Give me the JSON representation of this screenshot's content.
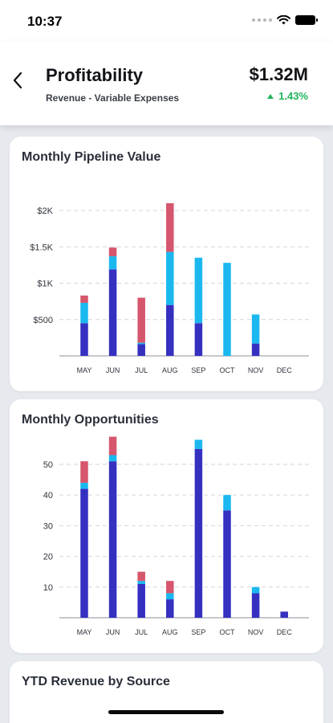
{
  "status_bar": {
    "time": "10:37"
  },
  "header": {
    "title": "Profitability",
    "subtitle": "Revenue - Variable Expenses",
    "value": "$1.32M",
    "change": "1.43%"
  },
  "colors": {
    "dark": "#3530c0",
    "light": "#1ab8ef",
    "red": "#d6566d",
    "positive": "#22b45c"
  },
  "chart_data": [
    {
      "type": "bar",
      "stacked": true,
      "title": "Monthly Pipeline Value",
      "categories": [
        "MAY",
        "JUN",
        "JUL",
        "AUG",
        "SEP",
        "OCT",
        "NOV",
        "DEC"
      ],
      "ylim": [
        0,
        2500
      ],
      "yticks": [
        {
          "value": 500,
          "label": "$500"
        },
        {
          "value": 1000,
          "label": "$1K"
        },
        {
          "value": 1500,
          "label": "$1.5K"
        },
        {
          "value": 2000,
          "label": "$2K"
        }
      ],
      "grid": true,
      "series": [
        {
          "color": "#3530c0",
          "values": [
            450,
            1190,
            160,
            700,
            450,
            0,
            170,
            0
          ]
        },
        {
          "color": "#1ab8ef",
          "values": [
            280,
            180,
            20,
            730,
            900,
            1280,
            400,
            0
          ]
        },
        {
          "color": "#d6566d",
          "values": [
            100,
            120,
            620,
            670,
            0,
            0,
            0,
            0
          ]
        }
      ]
    },
    {
      "type": "bar",
      "stacked": true,
      "title": "Monthly Opportunities",
      "categories": [
        "MAY",
        "JUN",
        "JUL",
        "AUG",
        "SEP",
        "OCT",
        "NOV",
        "DEC"
      ],
      "ylim": [
        0,
        60
      ],
      "yticks": [
        {
          "value": 10,
          "label": "10"
        },
        {
          "value": 20,
          "label": "20"
        },
        {
          "value": 30,
          "label": "30"
        },
        {
          "value": 40,
          "label": "40"
        },
        {
          "value": 50,
          "label": "50"
        }
      ],
      "grid": true,
      "series": [
        {
          "color": "#3530c0",
          "values": [
            42,
            51,
            11,
            6,
            55,
            35,
            8,
            2
          ]
        },
        {
          "color": "#1ab8ef",
          "values": [
            2,
            2,
            1,
            2,
            3,
            5,
            2,
            0
          ]
        },
        {
          "color": "#d6566d",
          "values": [
            7,
            6,
            3,
            4,
            0,
            0,
            0,
            0
          ]
        }
      ]
    }
  ],
  "third_card": {
    "title": "YTD Revenue by Source"
  }
}
